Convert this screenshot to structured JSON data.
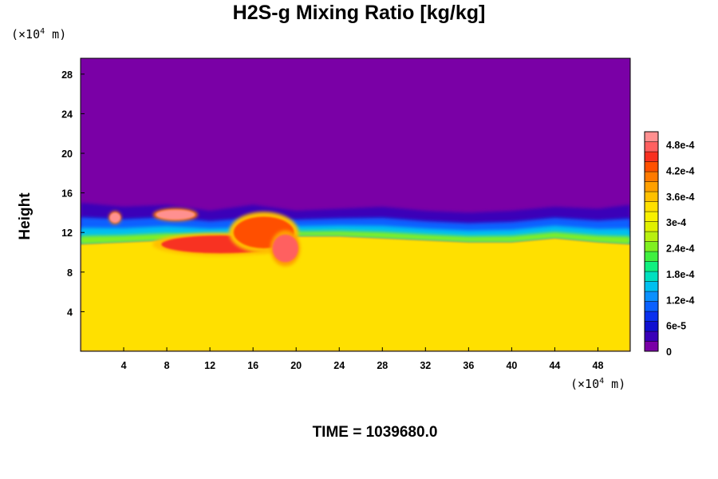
{
  "title": "H2S-g Mixing Ratio [kg/kg]",
  "time_label": "TIME = 1039680.0",
  "y_unit": {
    "base": "(×10",
    "exp": "4",
    "suffix": " m)"
  },
  "x_unit": {
    "base": "(×10",
    "exp": "4",
    "suffix": " m)"
  },
  "chart_data": {
    "type": "heatmap",
    "title": "H2S-g Mixing Ratio [kg/kg]",
    "ylabel": "Height",
    "xlabel": "",
    "xlim": [
      0,
      51
    ],
    "ylim": [
      0,
      29.6
    ],
    "xticks": [
      {
        "value": 4,
        "label": "4"
      },
      {
        "value": 8,
        "label": "8"
      },
      {
        "value": 12,
        "label": "12"
      },
      {
        "value": 16,
        "label": "16"
      },
      {
        "value": 20,
        "label": "20"
      },
      {
        "value": 24,
        "label": "24"
      },
      {
        "value": 28,
        "label": "28"
      },
      {
        "value": 32,
        "label": "32"
      },
      {
        "value": 36,
        "label": "36"
      },
      {
        "value": 40,
        "label": "40"
      },
      {
        "value": 44,
        "label": "44"
      },
      {
        "value": 48,
        "label": "48"
      }
    ],
    "yticks": [
      {
        "value": 4,
        "label": "4"
      },
      {
        "value": 8,
        "label": "8"
      },
      {
        "value": 12,
        "label": "12"
      },
      {
        "value": 16,
        "label": "16"
      },
      {
        "value": 20,
        "label": "20"
      },
      {
        "value": 24,
        "label": "24"
      },
      {
        "value": 28,
        "label": "28"
      }
    ],
    "colorbar": {
      "range": [
        0,
        0.00051
      ],
      "colors": [
        "#7a00a6",
        "#3a00b8",
        "#1010d0",
        "#0a30ee",
        "#0a60ff",
        "#0a90ff",
        "#00c0f0",
        "#00e0c0",
        "#10f080",
        "#40f040",
        "#80f020",
        "#b8f010",
        "#e0f000",
        "#f8f000",
        "#ffe000",
        "#ffc000",
        "#ffa000",
        "#ff7a00",
        "#ff5000",
        "#f83020",
        "#ff6060",
        "#ff9090"
      ],
      "ticks": [
        {
          "value": 0,
          "label": "0"
        },
        {
          "value": 6e-05,
          "label": "6e-5"
        },
        {
          "value": 0.00012,
          "label": "1.2e-4"
        },
        {
          "value": 0.00018,
          "label": "1.8e-4"
        },
        {
          "value": 0.00024,
          "label": "2.4e-4"
        },
        {
          "value": 0.0003,
          "label": "3e-4"
        },
        {
          "value": 0.00036,
          "label": "3.6e-4"
        },
        {
          "value": 0.00042,
          "label": "4.2e-4"
        },
        {
          "value": 0.00048,
          "label": "4.8e-4"
        }
      ]
    },
    "field": {
      "lower_region_value": 0.00033,
      "upper_region_value": 0,
      "interface_height": [
        {
          "x": 0,
          "y": 10.8
        },
        {
          "x": 4,
          "y": 11.0
        },
        {
          "x": 8,
          "y": 11.2
        },
        {
          "x": 12,
          "y": 11.2
        },
        {
          "x": 16,
          "y": 11.0
        },
        {
          "x": 20,
          "y": 11.6
        },
        {
          "x": 24,
          "y": 11.6
        },
        {
          "x": 28,
          "y": 11.4
        },
        {
          "x": 32,
          "y": 11.2
        },
        {
          "x": 36,
          "y": 11.0
        },
        {
          "x": 40,
          "y": 11.0
        },
        {
          "x": 44,
          "y": 11.4
        },
        {
          "x": 48,
          "y": 11.0
        },
        {
          "x": 51,
          "y": 10.8
        }
      ],
      "plume_top": [
        {
          "x": 0,
          "y": 15.0
        },
        {
          "x": 4,
          "y": 14.6
        },
        {
          "x": 8,
          "y": 14.8
        },
        {
          "x": 12,
          "y": 14.2
        },
        {
          "x": 16,
          "y": 14.8
        },
        {
          "x": 20,
          "y": 14.2
        },
        {
          "x": 24,
          "y": 14.4
        },
        {
          "x": 28,
          "y": 14.6
        },
        {
          "x": 32,
          "y": 14.2
        },
        {
          "x": 36,
          "y": 14.0
        },
        {
          "x": 40,
          "y": 14.2
        },
        {
          "x": 44,
          "y": 14.6
        },
        {
          "x": 48,
          "y": 14.4
        },
        {
          "x": 51,
          "y": 14.8
        }
      ],
      "hot_spots": [
        {
          "x": 13,
          "y": 10.8,
          "rx": 5.5,
          "ry": 0.9,
          "value": 0.00046
        },
        {
          "x": 17,
          "y": 12.0,
          "rx": 2.8,
          "ry": 1.6,
          "value": 0.00044
        },
        {
          "x": 19,
          "y": 10.4,
          "rx": 1.2,
          "ry": 1.4,
          "value": 0.00047
        },
        {
          "x": 8.8,
          "y": 13.8,
          "rx": 1.8,
          "ry": 0.5,
          "value": 0.0005
        },
        {
          "x": 3.2,
          "y": 13.5,
          "rx": 0.5,
          "ry": 0.5,
          "value": 0.0005
        }
      ]
    }
  }
}
